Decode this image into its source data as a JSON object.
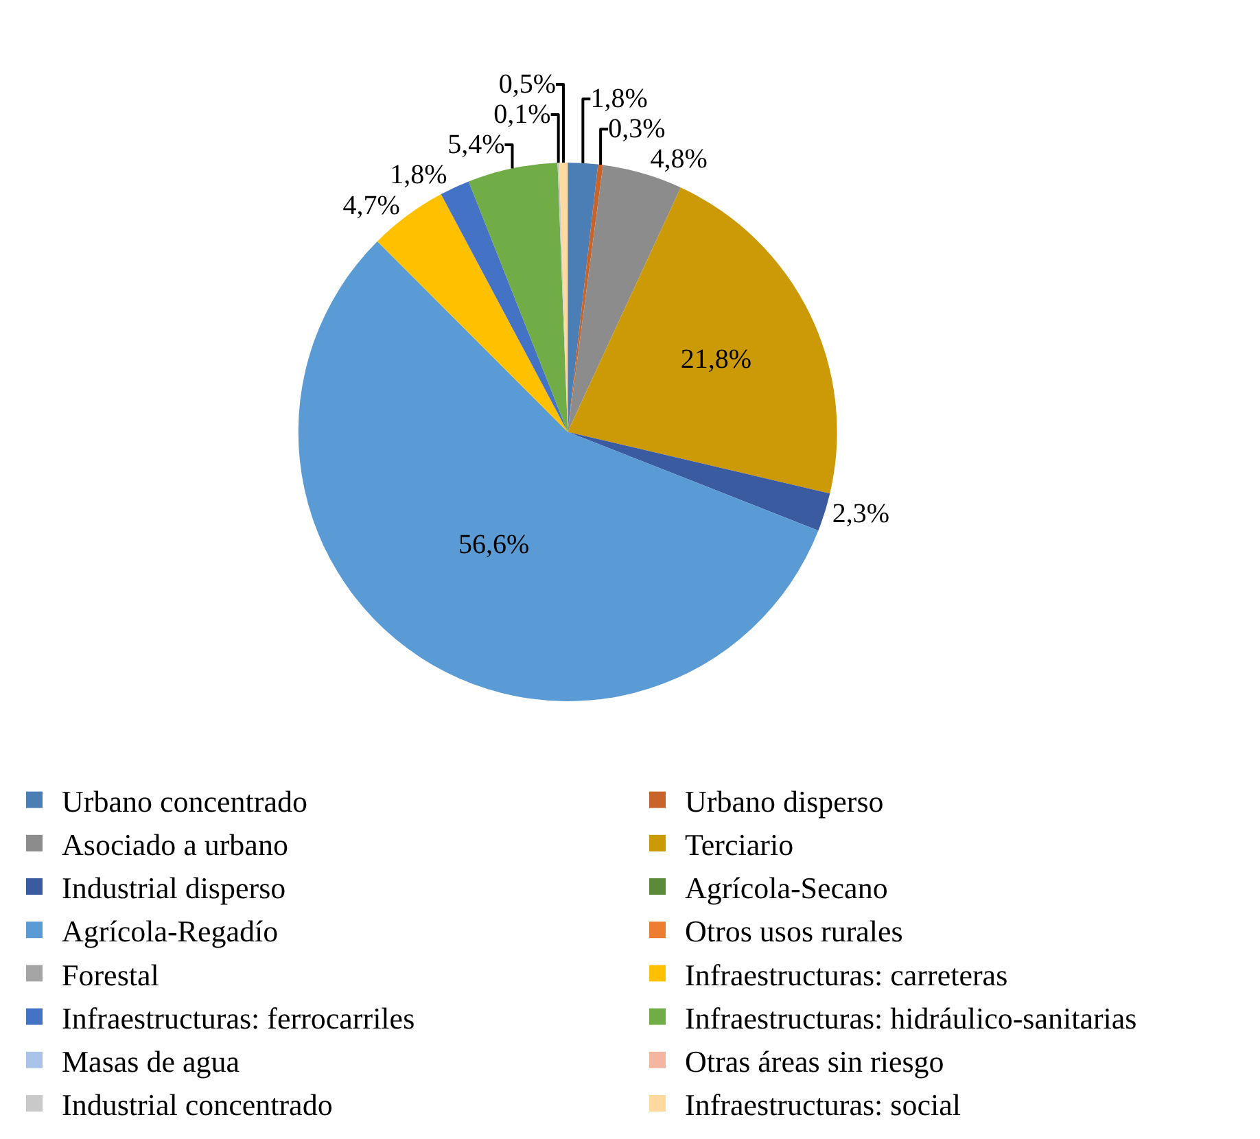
{
  "chart_data": {
    "type": "pie",
    "categories": [
      "Urbano concentrado",
      "Urbano disperso",
      "Asociado a urbano",
      "Terciario",
      "Industrial disperso",
      "Agrícola-Secano",
      "Agrícola-Regadío",
      "Otros usos rurales",
      "Forestal",
      "Infraestructuras: carreteras",
      "Infraestructuras: ferrocarriles",
      "Infraestructuras: hidráulico-sanitarias",
      "Masas de agua",
      "Otras áreas sin riesgo",
      "Industrial concentrado",
      "Infraestructuras: social"
    ],
    "values": [
      1.8,
      0.3,
      4.8,
      21.8,
      2.3,
      0,
      56.6,
      0,
      0,
      4.7,
      1.8,
      5.4,
      0,
      0,
      0.1,
      0.5
    ],
    "value_labels": [
      "1,8%",
      "0,3%",
      "4,8%",
      "21,8%",
      "2,3%",
      null,
      "56,6%",
      null,
      null,
      "4,7%",
      "1,8%",
      "5,4%",
      null,
      null,
      "0,1%",
      "0,5%"
    ],
    "colors": [
      "#4a7eb5",
      "#c8642a",
      "#8c8c8c",
      "#cc9a06",
      "#3a5ba0",
      "#5a8a3a",
      "#5b9bd5",
      "#ed7d31",
      "#a5a5a5",
      "#ffc000",
      "#4472c4",
      "#70ad47",
      "#a9c4e8",
      "#f4b6a0",
      "#c9c9c9",
      "#ffd9a0"
    ],
    "legend": "bottom"
  }
}
